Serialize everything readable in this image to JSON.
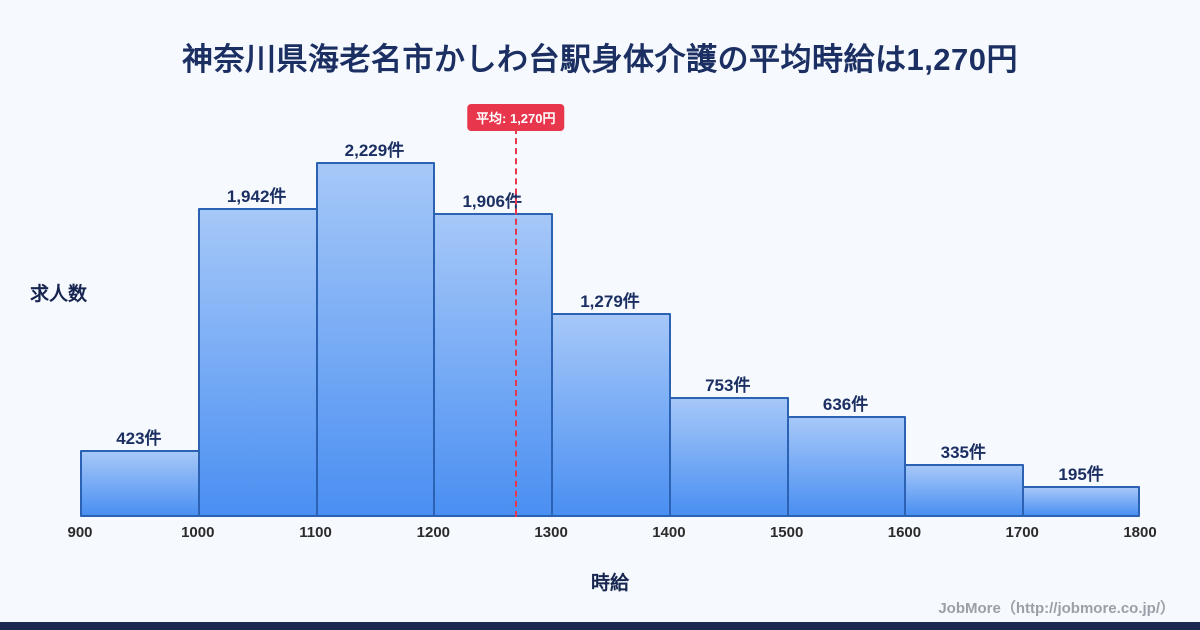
{
  "title": "神奈川県海老名市かしわ台駅身体介護の平均時給は1,270円",
  "footer": "JobMore（http://jobmore.co.jp/）",
  "chart_data": {
    "type": "bar",
    "subtype": "histogram",
    "title": "神奈川県海老名市かしわ台駅身体介護の平均時給は1,270円",
    "xlabel": "時給",
    "ylabel": "求人数",
    "x_range": [
      900,
      1800
    ],
    "x_ticks": [
      "900",
      "1000",
      "1100",
      "1200",
      "1300",
      "1400",
      "1500",
      "1600",
      "1700",
      "1800"
    ],
    "bins": [
      [
        900,
        1000
      ],
      [
        1000,
        1100
      ],
      [
        1100,
        1200
      ],
      [
        1200,
        1300
      ],
      [
        1300,
        1400
      ],
      [
        1400,
        1500
      ],
      [
        1500,
        1600
      ],
      [
        1600,
        1700
      ],
      [
        1700,
        1800
      ]
    ],
    "values": [
      423,
      1942,
      2229,
      1906,
      1279,
      753,
      636,
      335,
      195
    ],
    "value_labels": [
      "423件",
      "1,942件",
      "2,229件",
      "1,906件",
      "1,279件",
      "753件",
      "636件",
      "335件",
      "195件"
    ],
    "average": 1270,
    "average_label": "平均: 1,270円",
    "grid": false,
    "legend": "none",
    "colors": {
      "background": "#f6f9fd",
      "bar_top": "#a6c8f8",
      "bar_bottom": "#4a8ff2",
      "bar_border": "#2c62b4",
      "average_line": "#e8364d",
      "title_text": "#1b2f63",
      "accent_bottom_bar": "#1b2a52"
    }
  }
}
